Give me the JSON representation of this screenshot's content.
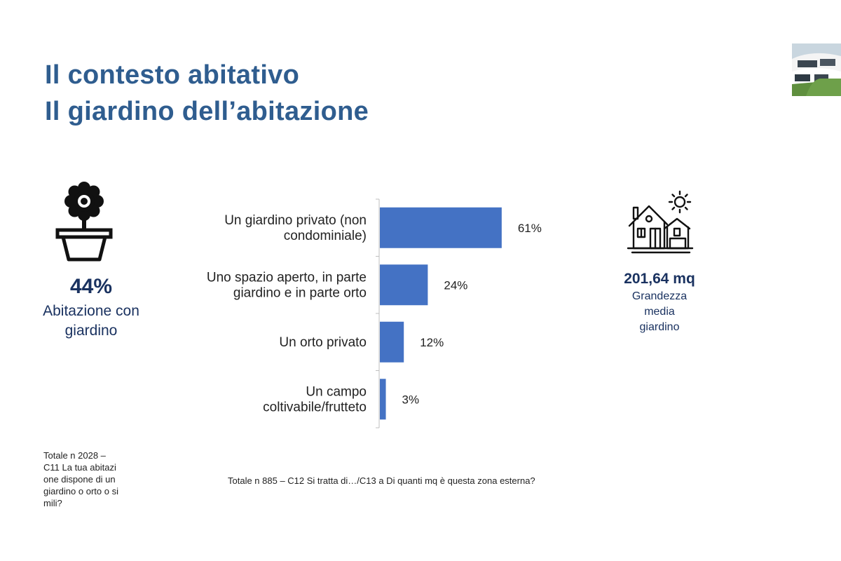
{
  "slide": {
    "title_line1": "Il contesto abitativo",
    "title_line2": "Il giardino dell’abitazione"
  },
  "left_stat": {
    "value": "44%",
    "label_line1": "Abitazione con",
    "label_line2": "giardino",
    "icon": "flower-pot-icon"
  },
  "right_stat": {
    "value": "201,64 mq",
    "label_line1": "Grandezza",
    "label_line2": "media",
    "label_line3": "giardino",
    "icon": "house-sun-icon"
  },
  "notes": {
    "left_line1": "Totale n 2028 –",
    "left_line2": "C11 La tua abitazi",
    "left_line3": "one dispone di un",
    "left_line4": "giardino o orto o si",
    "left_line5": "mili?",
    "bottom": "Totale n 885 –  C12 Si tratta di…/C13 a Di quanti mq è questa zona esterna?"
  },
  "colors": {
    "title": "#2f5d8f",
    "dark_text": "#1a3260",
    "bar": "#4472c4"
  },
  "chart_data": {
    "type": "bar",
    "orientation": "horizontal",
    "categories": [
      [
        "Un giardino privato (non",
        "condominiale)"
      ],
      [
        "Uno spazio aperto, in parte",
        "giardino e in parte orto"
      ],
      [
        "Un orto privato"
      ],
      [
        "Un campo",
        "coltivabile/frutteto"
      ]
    ],
    "values": [
      61,
      24,
      12,
      3
    ],
    "value_labels": [
      "61%",
      "24%",
      "12%",
      "3%"
    ],
    "xlim": [
      0,
      100
    ]
  }
}
